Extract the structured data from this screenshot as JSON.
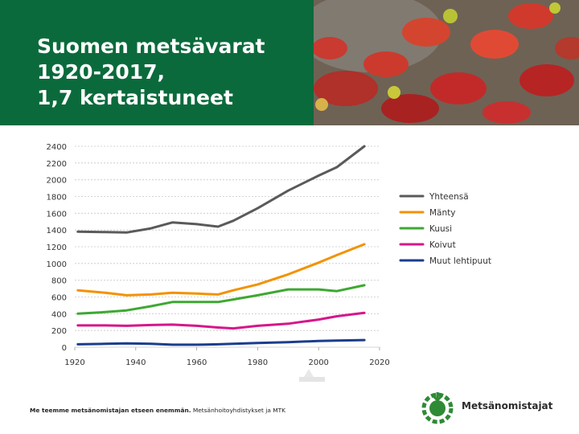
{
  "slide": {
    "title_lines": [
      "Suomen metsävarat",
      "1920-2017,",
      "1,7 kertaistuneet"
    ],
    "footer_bold": "Me teemme metsänomistajan etseen enemmän.",
    "footer_regular": "Metsänhoitoyhdistykset ja MTK",
    "logo_text": "Metsänomistajat"
  },
  "colors": {
    "header_green": "#0b6a3c",
    "logo_green": "#2f8a35"
  },
  "chart_data": {
    "type": "line",
    "title": "",
    "xlabel": "",
    "ylabel": "",
    "xlim": [
      1920,
      2020
    ],
    "ylim": [
      0,
      2400
    ],
    "xticks": [
      1920,
      1940,
      1960,
      1980,
      2000,
      2020
    ],
    "yticks": [
      0,
      200,
      400,
      600,
      800,
      1000,
      1200,
      1400,
      1600,
      1800,
      2000,
      2200,
      2400
    ],
    "grid": "horizontal dotted",
    "legend_position": "right",
    "series": [
      {
        "name": "Yhteensä",
        "color": "#5a5a5a",
        "x": [
          1921,
          1930,
          1937,
          1945,
          1952,
          1960,
          1967,
          1972,
          1980,
          1990,
          2000,
          2006,
          2015
        ],
        "y": [
          1380,
          1375,
          1370,
          1420,
          1490,
          1470,
          1440,
          1510,
          1660,
          1870,
          2050,
          2150,
          2400
        ]
      },
      {
        "name": "Mänty",
        "color": "#f39200",
        "x": [
          1921,
          1930,
          1937,
          1945,
          1952,
          1960,
          1967,
          1972,
          1980,
          1990,
          2000,
          2006,
          2015
        ],
        "y": [
          680,
          650,
          620,
          630,
          650,
          640,
          630,
          680,
          750,
          870,
          1010,
          1100,
          1230
        ]
      },
      {
        "name": "Kuusi",
        "color": "#3ea832",
        "x": [
          1921,
          1930,
          1937,
          1945,
          1952,
          1960,
          1967,
          1972,
          1980,
          1990,
          2000,
          2006,
          2015
        ],
        "y": [
          400,
          420,
          440,
          490,
          540,
          540,
          540,
          570,
          620,
          690,
          690,
          670,
          740
        ]
      },
      {
        "name": "Koivut",
        "color": "#d6168b",
        "x": [
          1921,
          1930,
          1937,
          1945,
          1952,
          1960,
          1967,
          1972,
          1980,
          1990,
          2000,
          2006,
          2015
        ],
        "y": [
          260,
          260,
          255,
          265,
          270,
          255,
          235,
          225,
          255,
          280,
          330,
          370,
          410
        ]
      },
      {
        "name": "Muut lehtipuut",
        "color": "#1a3e8c",
        "x": [
          1921,
          1930,
          1937,
          1945,
          1952,
          1960,
          1967,
          1972,
          1980,
          1990,
          2000,
          2006,
          2015
        ],
        "y": [
          35,
          40,
          45,
          40,
          30,
          30,
          35,
          40,
          50,
          60,
          75,
          80,
          85
        ]
      }
    ]
  }
}
